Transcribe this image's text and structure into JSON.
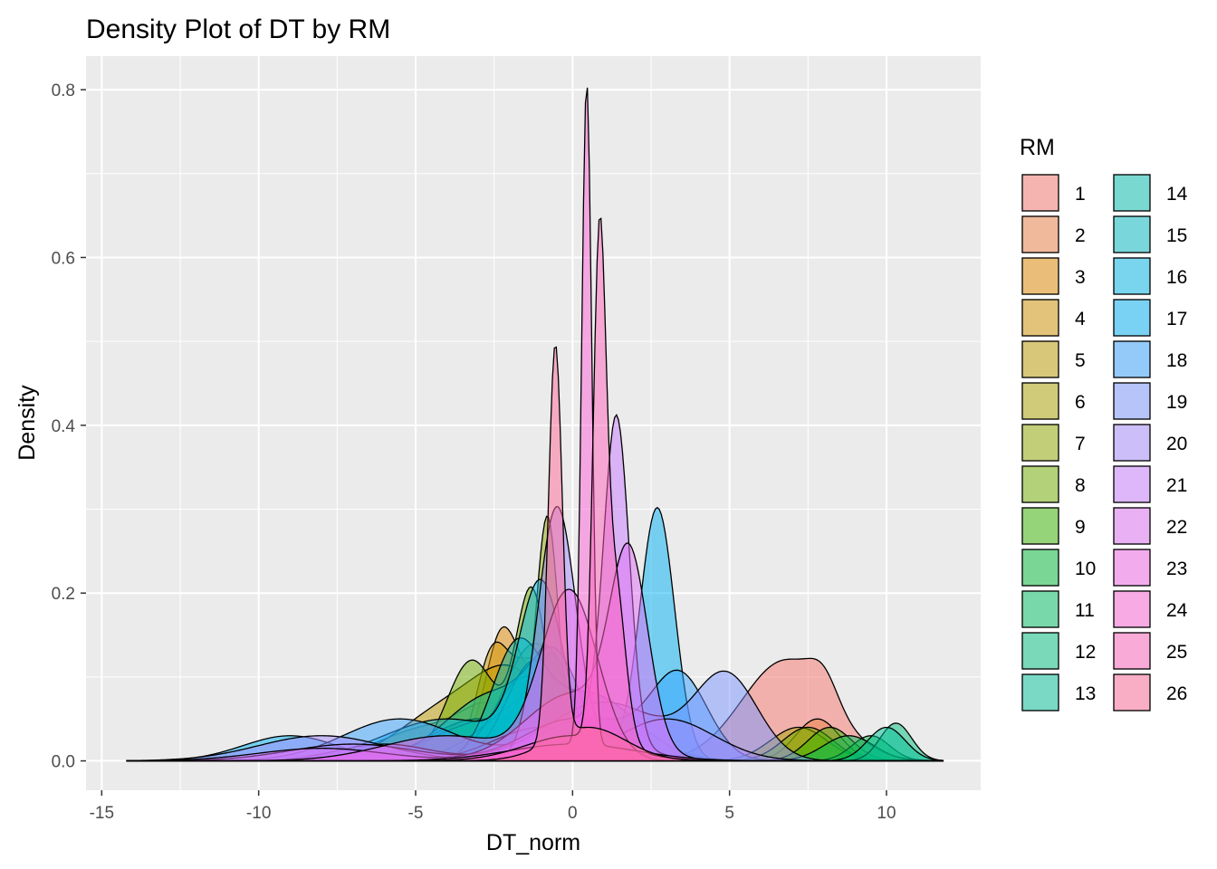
{
  "chart_data": {
    "type": "area",
    "title": "Density Plot of DT by RM",
    "xlabel": "DT_norm",
    "ylabel": "Density",
    "xlim": [
      -15.5,
      13
    ],
    "ylim": [
      -0.035,
      0.84
    ],
    "x_ticks": [
      -15,
      -10,
      -5,
      0,
      5,
      10
    ],
    "x_tick_labels": [
      "-15",
      "-10",
      "-5",
      "0",
      "5",
      "10"
    ],
    "y_ticks": [
      0.0,
      0.2,
      0.4,
      0.6,
      0.8
    ],
    "y_tick_labels": [
      "0.0",
      "0.2",
      "0.4",
      "0.6",
      "0.8"
    ],
    "x_range": [
      -14.2,
      11.8
    ],
    "grid": true,
    "legend": {
      "title": "RM",
      "position": "right",
      "columns": 2
    },
    "series": [
      {
        "name": "1",
        "color": "#F8766D",
        "components": [
          [
            0.12,
            6.8,
            1.4
          ],
          [
            0.03,
            8.0,
            0.45
          ]
        ]
      },
      {
        "name": "2",
        "color": "#EE8044",
        "components": [
          [
            0.05,
            -2.5,
            0.9
          ],
          [
            0.04,
            -4.5,
            1.6
          ],
          [
            0.05,
            7.8,
            0.7
          ]
        ]
      },
      {
        "name": "3",
        "color": "#E18A00",
        "components": [
          [
            0.08,
            -2.3,
            0.45
          ],
          [
            0.1,
            -1.5,
            1.1
          ]
        ]
      },
      {
        "name": "4",
        "color": "#D29300",
        "components": [
          [
            0.1,
            -2.6,
            0.5
          ],
          [
            0.12,
            -1.2,
            0.9
          ]
        ]
      },
      {
        "name": "5",
        "color": "#C09B00",
        "components": [
          [
            0.09,
            -1.8,
            1.2
          ],
          [
            0.06,
            -4.0,
            1.5
          ]
        ]
      },
      {
        "name": "6",
        "color": "#ABA300",
        "components": [
          [
            0.14,
            -1.2,
            1.0
          ],
          [
            0.04,
            7.2,
            0.9
          ]
        ]
      },
      {
        "name": "7",
        "color": "#93AA00",
        "components": [
          [
            0.28,
            -0.8,
            0.35
          ],
          [
            0.05,
            -3.0,
            1.3
          ]
        ]
      },
      {
        "name": "8",
        "color": "#72B000",
        "components": [
          [
            0.12,
            -3.2,
            0.8
          ],
          [
            0.2,
            -1.3,
            0.5
          ],
          [
            0.04,
            7.5,
            0.8
          ]
        ]
      },
      {
        "name": "9",
        "color": "#39B600",
        "components": [
          [
            0.05,
            -3.0,
            1.5
          ],
          [
            0.12,
            -0.8,
            0.6
          ],
          [
            0.04,
            8.2,
            0.7
          ]
        ]
      },
      {
        "name": "10",
        "color": "#00BA38",
        "components": [
          [
            0.05,
            -2.5,
            1.8
          ],
          [
            0.1,
            -0.6,
            0.5
          ],
          [
            0.03,
            9.5,
            0.6
          ]
        ]
      },
      {
        "name": "11",
        "color": "#00BD5F",
        "components": [
          [
            0.08,
            -1.0,
            1.6
          ],
          [
            0.03,
            8.8,
            0.8
          ]
        ]
      },
      {
        "name": "12",
        "color": "#00BF7D",
        "components": [
          [
            0.1,
            -1.5,
            1.0
          ],
          [
            0.045,
            10.3,
            0.5
          ]
        ]
      },
      {
        "name": "13",
        "color": "#00C097",
        "components": [
          [
            0.12,
            -1.2,
            0.9
          ],
          [
            0.04,
            10.0,
            0.6
          ]
        ]
      },
      {
        "name": "14",
        "color": "#00C0AF",
        "components": [
          [
            0.08,
            -2.5,
            1.5
          ],
          [
            0.1,
            -0.5,
            0.8
          ]
        ]
      },
      {
        "name": "15",
        "color": "#00BCC4",
        "components": [
          [
            0.12,
            -1.8,
            0.8
          ],
          [
            0.08,
            0.5,
            1.5
          ]
        ]
      },
      {
        "name": "16",
        "color": "#00B8E7",
        "components": [
          [
            0.2,
            -1.0,
            0.7
          ],
          [
            0.05,
            -4.0,
            2.0
          ]
        ]
      },
      {
        "name": "17",
        "color": "#00B2F3",
        "components": [
          [
            0.3,
            2.7,
            0.55
          ],
          [
            0.03,
            -9.0,
            1.5
          ],
          [
            0.04,
            -1.0,
            1.5
          ]
        ]
      },
      {
        "name": "18",
        "color": "#35A2FF",
        "components": [
          [
            0.05,
            -5.5,
            1.8
          ],
          [
            0.1,
            3.4,
            0.9
          ],
          [
            0.05,
            0.5,
            1.5
          ]
        ]
      },
      {
        "name": "19",
        "color": "#7C96FF",
        "components": [
          [
            0.1,
            4.9,
            1.0
          ],
          [
            0.07,
            1.0,
            1.8
          ],
          [
            0.02,
            -6.0,
            1.5
          ]
        ]
      },
      {
        "name": "20",
        "color": "#A58AFF",
        "components": [
          [
            0.3,
            -0.5,
            0.6
          ],
          [
            0.03,
            -8.0,
            2.0
          ],
          [
            0.05,
            3.0,
            1.5
          ]
        ]
      },
      {
        "name": "21",
        "color": "#C77CFF",
        "components": [
          [
            0.38,
            1.4,
            0.4
          ],
          [
            0.05,
            0.0,
            1.5
          ],
          [
            0.02,
            -7.0,
            2.0
          ]
        ]
      },
      {
        "name": "22",
        "color": "#E06FF5",
        "components": [
          [
            0.22,
            1.8,
            0.6
          ],
          [
            0.08,
            0.0,
            1.5
          ],
          [
            0.015,
            -8.0,
            2.0
          ]
        ]
      },
      {
        "name": "23",
        "color": "#F166E8",
        "components": [
          [
            0.2,
            -0.1,
            0.9
          ],
          [
            0.03,
            -4.0,
            2.0
          ]
        ]
      },
      {
        "name": "24",
        "color": "#FC61D5",
        "components": [
          [
            0.79,
            0.45,
            0.16
          ],
          [
            0.02,
            0.0,
            2.0
          ]
        ]
      },
      {
        "name": "25",
        "color": "#FF62BC",
        "components": [
          [
            0.53,
            0.85,
            0.2
          ],
          [
            0.21,
            1.3,
            0.35
          ],
          [
            0.03,
            0.0,
            1.5
          ]
        ]
      },
      {
        "name": "26",
        "color": "#FF6A98",
        "components": [
          [
            0.47,
            -0.55,
            0.22
          ],
          [
            0.04,
            0.5,
            1.2
          ]
        ]
      }
    ]
  }
}
